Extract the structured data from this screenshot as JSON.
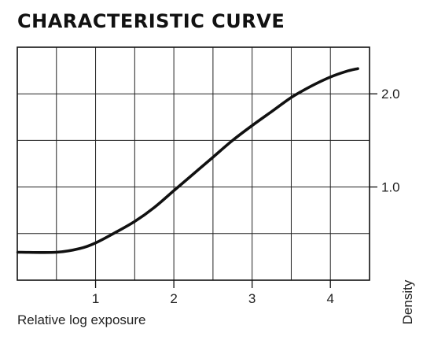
{
  "chart_data": {
    "type": "line",
    "title": "CHARACTERISTIC CURVE",
    "xlabel": "Relative log exposure",
    "ylabel": "Density",
    "xlim": [
      0,
      4.5
    ],
    "ylim": [
      0,
      2.5
    ],
    "x_ticks": [
      1,
      2,
      3,
      4
    ],
    "x_tick_labels": [
      "1",
      "2",
      "3",
      "4"
    ],
    "y_ticks": [
      1.0,
      2.0
    ],
    "y_tick_labels": [
      "1.0",
      "2.0"
    ],
    "grid": true,
    "ytick_position": "right",
    "series": [
      {
        "x": [
          0.05,
          0.5,
          0.8,
          1.0,
          1.25,
          1.5,
          1.75,
          2.0,
          2.25,
          2.5,
          2.75,
          3.0,
          3.25,
          3.5,
          3.75,
          4.0,
          4.2,
          4.35
        ],
        "y": [
          0.3,
          0.3,
          0.34,
          0.4,
          0.51,
          0.63,
          0.78,
          0.96,
          1.14,
          1.32,
          1.5,
          1.66,
          1.81,
          1.96,
          2.08,
          2.18,
          2.24,
          2.27
        ]
      }
    ]
  }
}
